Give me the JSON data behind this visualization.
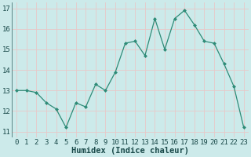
{
  "x": [
    0,
    1,
    2,
    3,
    4,
    5,
    6,
    7,
    8,
    9,
    10,
    11,
    12,
    13,
    14,
    15,
    16,
    17,
    18,
    19,
    20,
    21,
    22,
    23
  ],
  "y": [
    13.0,
    13.0,
    12.9,
    12.4,
    12.1,
    11.2,
    12.4,
    12.2,
    13.3,
    13.0,
    13.9,
    15.3,
    15.4,
    14.7,
    16.5,
    15.0,
    16.5,
    16.9,
    16.2,
    15.4,
    15.3,
    14.3,
    13.2,
    11.2
  ],
  "xlabel": "Humidex (Indice chaleur)",
  "xlim": [
    -0.5,
    23.5
  ],
  "ylim": [
    10.7,
    17.3
  ],
  "yticks": [
    11,
    12,
    13,
    14,
    15,
    16,
    17
  ],
  "xticks": [
    0,
    1,
    2,
    3,
    4,
    5,
    6,
    7,
    8,
    9,
    10,
    11,
    12,
    13,
    14,
    15,
    16,
    17,
    18,
    19,
    20,
    21,
    22,
    23
  ],
  "line_color": "#2e8b77",
  "marker": "D",
  "marker_size": 2.5,
  "marker_color": "#2e8b77",
  "bg_color": "#cceaea",
  "grid_color": "#e8c8c8",
  "tick_label_fontsize": 6.5,
  "xlabel_fontsize": 7.5,
  "xlabel_fontweight": "bold"
}
